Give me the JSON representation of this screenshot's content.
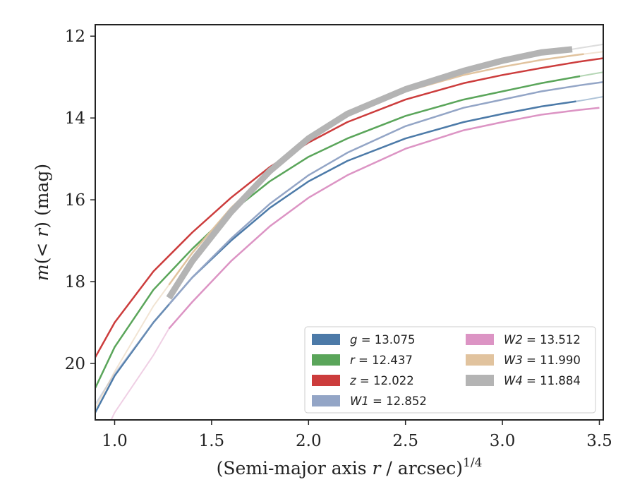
{
  "chart_data": {
    "type": "line",
    "xlabel": "(Semi-major axis r / arcsec)",
    "xlabel_var": "r",
    "xlabel_exponent": "1/4",
    "ylabel": "m(< r) (mag)",
    "xlim": [
      0.9,
      3.52
    ],
    "ylim": [
      21.38,
      11.72
    ],
    "y_inverted": true,
    "x_ticks": [
      1.0,
      1.5,
      2.0,
      2.5,
      3.0,
      3.5
    ],
    "x_tick_labels": [
      "1.0",
      "1.5",
      "2.0",
      "2.5",
      "3.0",
      "3.5"
    ],
    "y_ticks": [
      12,
      14,
      16,
      18,
      20
    ],
    "y_tick_labels": [
      "12",
      "14",
      "16",
      "18",
      "20"
    ],
    "grid": false,
    "legend_position": "lower-right",
    "legend_columns": 2,
    "series": [
      {
        "name": "g",
        "label_value": "13.075",
        "color": "#4c7aa8",
        "x": [
          0.9,
          1.0,
          1.2,
          1.4,
          1.6,
          1.8,
          2.0,
          2.2,
          2.5,
          2.8,
          3.0,
          3.2,
          3.4,
          3.52
        ],
        "y": [
          21.2,
          20.3,
          19.0,
          17.9,
          17.0,
          16.2,
          15.55,
          15.05,
          14.5,
          14.1,
          13.9,
          13.72,
          13.58,
          13.48
        ],
        "bright_range": [
          0.9,
          3.38
        ],
        "width": 2.5
      },
      {
        "name": "r",
        "label_value": "12.437",
        "color": "#5aa55a",
        "x": [
          0.9,
          1.0,
          1.2,
          1.4,
          1.6,
          1.8,
          2.0,
          2.2,
          2.5,
          2.8,
          3.0,
          3.2,
          3.4,
          3.52
        ],
        "y": [
          20.6,
          19.6,
          18.2,
          17.2,
          16.3,
          15.55,
          14.95,
          14.5,
          13.95,
          13.55,
          13.35,
          13.15,
          12.98,
          12.88
        ],
        "bright_range": [
          0.9,
          3.4
        ],
        "width": 2.5
      },
      {
        "name": "z",
        "label_value": "12.022",
        "color": "#cc3c3c",
        "x": [
          0.9,
          1.0,
          1.2,
          1.4,
          1.6,
          1.8,
          2.0,
          2.2,
          2.5,
          2.8,
          3.0,
          3.2,
          3.4,
          3.52
        ],
        "y": [
          19.85,
          19.0,
          17.75,
          16.8,
          15.95,
          15.2,
          14.6,
          14.1,
          13.55,
          13.15,
          12.95,
          12.78,
          12.62,
          12.54
        ],
        "bright_range": [
          0.9,
          3.52
        ],
        "width": 2.5
      },
      {
        "name": "W1",
        "label_value": "12.852",
        "color": "#93a5c6",
        "x": [
          0.9,
          1.0,
          1.2,
          1.4,
          1.6,
          1.8,
          2.0,
          2.2,
          2.5,
          2.8,
          3.0,
          3.2,
          3.4,
          3.52
        ],
        "y": [
          21.0,
          20.25,
          19.0,
          17.9,
          16.95,
          16.1,
          15.4,
          14.85,
          14.2,
          13.75,
          13.55,
          13.35,
          13.2,
          13.12
        ],
        "bright_range": [
          1.28,
          3.52
        ],
        "width": 2.5
      },
      {
        "name": "W2",
        "label_value": "13.512",
        "color": "#dc94c4",
        "x": [
          0.9,
          1.0,
          1.2,
          1.28,
          1.4,
          1.6,
          1.8,
          2.0,
          2.2,
          2.5,
          2.8,
          3.0,
          3.2,
          3.4,
          3.5
        ],
        "y": [
          22.2,
          21.2,
          19.8,
          19.15,
          18.5,
          17.5,
          16.65,
          15.95,
          15.4,
          14.75,
          14.3,
          14.1,
          13.92,
          13.8,
          13.75
        ],
        "bright_range": [
          1.28,
          3.5
        ],
        "width": 2.5
      },
      {
        "name": "W3",
        "label_value": "11.990",
        "color": "#e1c39e",
        "x": [
          0.9,
          1.0,
          1.2,
          1.4,
          1.6,
          1.8,
          2.0,
          2.2,
          2.5,
          2.8,
          3.0,
          3.2,
          3.4,
          3.52
        ],
        "y": [
          21.1,
          20.2,
          18.6,
          17.3,
          16.2,
          15.3,
          14.55,
          13.95,
          13.35,
          12.95,
          12.75,
          12.58,
          12.45,
          12.38
        ],
        "bright_range": [
          1.28,
          3.42
        ],
        "width": 2.5
      },
      {
        "name": "W4",
        "label_value": "11.884",
        "color": "#b4b4b4",
        "x": [
          1.28,
          1.4,
          1.6,
          1.8,
          2.0,
          2.2,
          2.5,
          2.8,
          3.0,
          3.2,
          3.36,
          3.52
        ],
        "y": [
          18.4,
          17.5,
          16.3,
          15.3,
          14.5,
          13.9,
          13.3,
          12.85,
          12.6,
          12.4,
          12.32,
          12.2
        ],
        "bright_range": [
          1.28,
          3.36
        ],
        "width": 9
      }
    ]
  }
}
